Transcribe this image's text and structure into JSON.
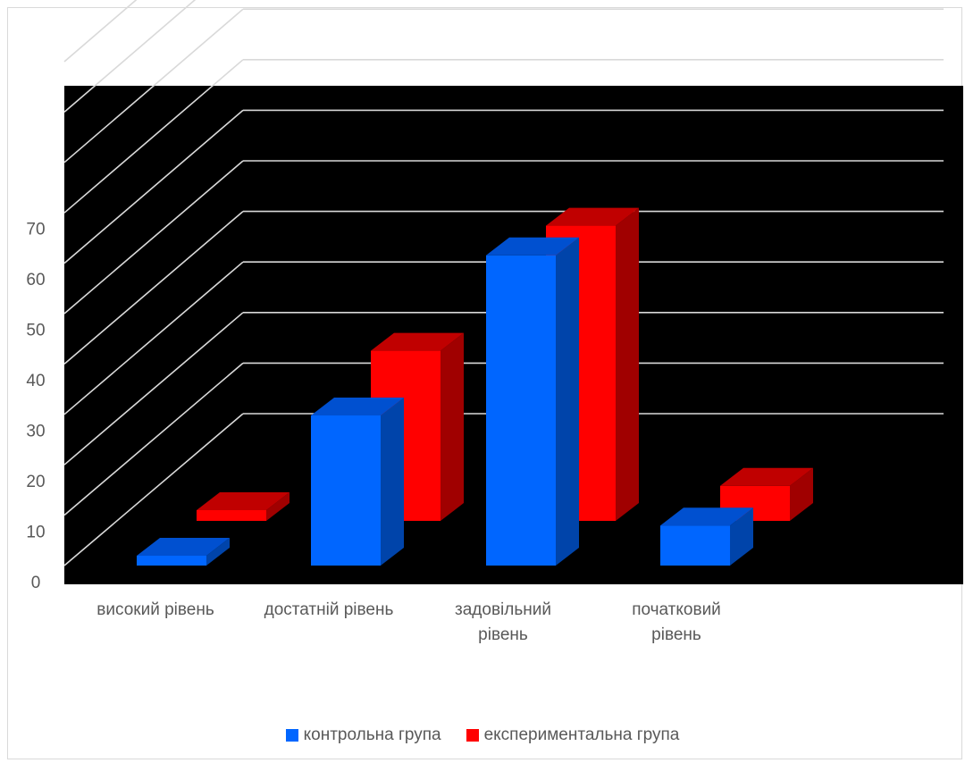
{
  "chart_data": {
    "type": "bar",
    "style": "3d-clustered-column",
    "categories": [
      [
        "високий рівень"
      ],
      [
        "достатній рівень"
      ],
      [
        "задовільний",
        "рівень"
      ],
      [
        "початковий",
        "рівень"
      ]
    ],
    "series": [
      {
        "name": "контрольна група",
        "values": [
          2,
          30,
          62,
          8
        ],
        "color": "#0066ff",
        "side_color": "#0044aa",
        "top_color": "#0050d0"
      },
      {
        "name": "експериментальна група",
        "values": [
          2,
          34,
          59,
          7
        ],
        "color": "#ff0000",
        "side_color": "#a00000",
        "top_color": "#c00000"
      }
    ],
    "yticks": [
      0,
      10,
      20,
      30,
      40,
      50,
      60,
      70
    ],
    "ylim": [
      0,
      100
    ],
    "plot_background": "#000000",
    "gridline_color": "#d9d9d9",
    "grid": true,
    "legend": "bottom"
  }
}
